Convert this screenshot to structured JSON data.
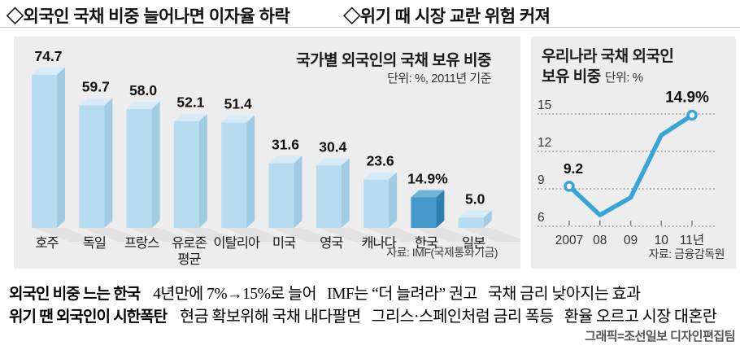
{
  "header": {
    "left_headline": "◇외국인 국채 비중 늘어나면 이자율 하락",
    "right_headline": "◇위기 때 시장 교란 위험 커져"
  },
  "bar_panel": {
    "title": "국가별 외국인의 국채 보유 비중",
    "unit_label": "단위: %, 2011년 기준",
    "source": "자료: IMF(국제통화기금)"
  },
  "line_panel": {
    "title_line1": "우리나라 국채 외국인",
    "title_line2": "보유 비중",
    "unit_label": "단위: %",
    "source": "자료: 금융감독원"
  },
  "chart_data": [
    {
      "type": "bar",
      "title": "국가별 외국인의 국채 보유 비중",
      "unit": "%, 2011년 기준",
      "categories": [
        "호주",
        "독일",
        "프랑스",
        "유로존 평균",
        "이탈리아",
        "미국",
        "영국",
        "캐나다",
        "한국",
        "일본"
      ],
      "values": [
        74.7,
        59.7,
        58.0,
        52.1,
        51.4,
        31.6,
        30.4,
        23.6,
        14.9,
        5.0
      ],
      "value_labels": [
        "74.7",
        "59.7",
        "58.0",
        "52.1",
        "51.4",
        "31.6",
        "30.4",
        "23.6",
        "14.9%",
        "5.0"
      ],
      "highlight_index": 8,
      "highlight_category": "한국",
      "ylim": [
        0,
        80
      ],
      "grid": false,
      "colors": {
        "normal": {
          "front": "#b7dbef",
          "top": "#d6ebf7",
          "side": "#a0cbe2"
        },
        "highlight": {
          "front": "#4599cb",
          "top": "#71b4da",
          "side": "#2d7fb0"
        },
        "shadow": "#dedede",
        "label": "#111111"
      }
    },
    {
      "type": "line",
      "title": "우리나라 국채 외국인 보유 비중",
      "unit": "%",
      "x": [
        "2007",
        "08",
        "09",
        "10",
        "11년"
      ],
      "values": [
        9.2,
        6.9,
        8.3,
        13.3,
        14.9
      ],
      "point_labels": {
        "0": "9.2",
        "4": "14.9%"
      },
      "marker_indices": [
        0,
        4
      ],
      "ylim": [
        6,
        15
      ],
      "yticks": [
        15,
        12,
        9,
        6
      ],
      "grid": "dotted horizontal",
      "colors": {
        "line": "#38a4d7",
        "marker_fill": "#ffffff",
        "grid": "#7a7a7a",
        "tick_text": "#333333"
      }
    }
  ],
  "footer": {
    "row1_lead": "외국인 비중 느는 한국",
    "row1_text": "4년만에 7%→15%로 늘어   IMF는 “더 늘려라” 권고   국채 금리 낮아지는 효과",
    "row2_lead": "위기 땐 외국인이 시한폭탄",
    "row2_text": "현금 확보위해 국채 내다팔면   그리스·스페인처럼 금리 폭등   환율 오르고 시장 대혼란",
    "credit": "그래픽=조선일보 디자인편집팀"
  }
}
